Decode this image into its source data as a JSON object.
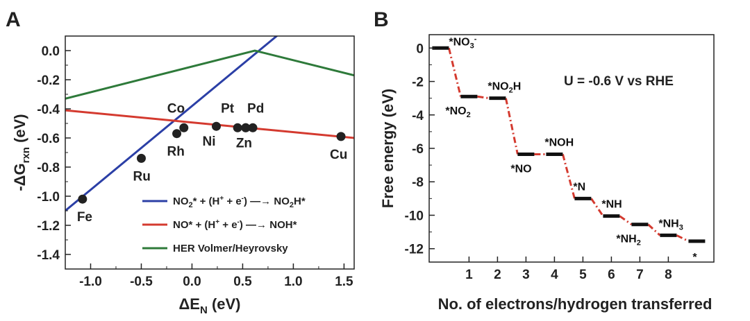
{
  "panels": {
    "a_letter": "A",
    "b_letter": "B"
  },
  "chart_data": [
    {
      "type": "line",
      "panel": "A",
      "xlabel": "ΔE",
      "xlabel_sub": "N",
      "xlabel_unit": " (eV)",
      "ylabel": "-ΔG",
      "ylabel_sub": "rxn",
      "ylabel_unit": " (eV)",
      "xlim": [
        -1.25,
        1.6
      ],
      "ylim": [
        -1.5,
        0.1
      ],
      "xticks": [
        "-1.0",
        "-0.5",
        "0.0",
        "0.5",
        "1.0",
        "1.5"
      ],
      "yticks": [
        "0.0",
        "-0.2",
        "-0.4",
        "-0.6",
        "-0.8",
        "-1.0",
        "-1.2",
        "-1.4"
      ],
      "series": [
        {
          "legend_main": "NO",
          "legend_sub": "2",
          "legend_rest": "* + (H",
          "legend_sup1": "+",
          "legend_mid": " + e",
          "legend_sup2": "-",
          "legend_end": ")",
          "legend_product": "NO",
          "legend_psub": "2",
          "legend_pend": "H*",
          "color": "#2b3fa6",
          "x": [
            -1.25,
            1.6
          ],
          "y": [
            -1.1,
            0.54
          ]
        },
        {
          "legend_main": "NO",
          "legend_sub": "",
          "legend_rest": "* + (H",
          "legend_sup1": "+",
          "legend_mid": " + e",
          "legend_sup2": "-",
          "legend_end": ")",
          "legend_product": "NOH*",
          "legend_psub": "",
          "legend_pend": "",
          "color": "#d43a2f",
          "x": [
            -1.25,
            1.6
          ],
          "y": [
            -0.41,
            -0.6
          ]
        },
        {
          "legend_text": "HER Volmer/Heyrovsky",
          "color": "#2e7a3a",
          "x": [
            -1.25,
            0.62,
            1.6
          ],
          "y": [
            -0.33,
            0.0,
            -0.17
          ]
        }
      ],
      "points": [
        {
          "label": "Fe",
          "x": -1.08,
          "y": -1.02
        },
        {
          "label": "Ru",
          "x": -0.5,
          "y": -0.74
        },
        {
          "label": "Rh",
          "x": -0.15,
          "y": -0.57
        },
        {
          "label": "Co",
          "x": -0.08,
          "y": -0.53
        },
        {
          "label": "Ni",
          "x": 0.24,
          "y": -0.52
        },
        {
          "label": "Pt",
          "x": 0.45,
          "y": -0.53
        },
        {
          "label": "",
          "x": 0.53,
          "y": -0.53
        },
        {
          "label": "Pd",
          "x": 0.6,
          "y": -0.53
        },
        {
          "label": "Zn",
          "x": 0.53,
          "y": -0.53
        },
        {
          "label": "Cu",
          "x": 1.47,
          "y": -0.59
        }
      ]
    },
    {
      "type": "line",
      "panel": "B",
      "xlabel": "No. of electrons/hydrogen transferred",
      "ylabel": "Free energy (eV)",
      "annotation": "U = -0.6 V vs RHE",
      "xlim": [
        -0.4,
        9.6
      ],
      "ylim": [
        -12.8,
        0.8
      ],
      "xticks": [
        "1",
        "2",
        "3",
        "4",
        "5",
        "6",
        "7",
        "8"
      ],
      "yticks": [
        "0",
        "-2",
        "-4",
        "-6",
        "-8",
        "-10",
        "-12"
      ],
      "line_color": "#d43a2f",
      "steps": [
        {
          "x": 0,
          "y": 0.0,
          "label": "*NO",
          "sub": "3",
          "sup": "-",
          "label_pos": "above-right"
        },
        {
          "x": 1,
          "y": -2.9,
          "label": "*NO",
          "sub": "2",
          "sup": "",
          "label_pos": "below"
        },
        {
          "x": 2,
          "y": -3.0,
          "label": "*NO",
          "sub": "2",
          "sup": "",
          "tail": "H",
          "label_pos": "above"
        },
        {
          "x": 3,
          "y": -6.35,
          "label": "*NO",
          "sub": "",
          "sup": "",
          "label_pos": "below"
        },
        {
          "x": 4,
          "y": -6.35,
          "label": "*NOH",
          "sub": "",
          "sup": "",
          "label_pos": "above"
        },
        {
          "x": 5,
          "y": -9.0,
          "label": "*N",
          "sub": "",
          "sup": "",
          "label_pos": "above"
        },
        {
          "x": 6,
          "y": -10.05,
          "label": "*NH",
          "sub": "",
          "sup": "",
          "label_pos": "above"
        },
        {
          "x": 7,
          "y": -10.55,
          "label": "*NH",
          "sub": "2",
          "sup": "",
          "label_pos": "below"
        },
        {
          "x": 8,
          "y": -11.2,
          "label": "*NH",
          "sub": "3",
          "sup": "",
          "label_pos": "above"
        },
        {
          "x": 9,
          "y": -11.55,
          "label": "*",
          "sub": "",
          "sup": "",
          "label_pos": "below"
        }
      ]
    }
  ]
}
